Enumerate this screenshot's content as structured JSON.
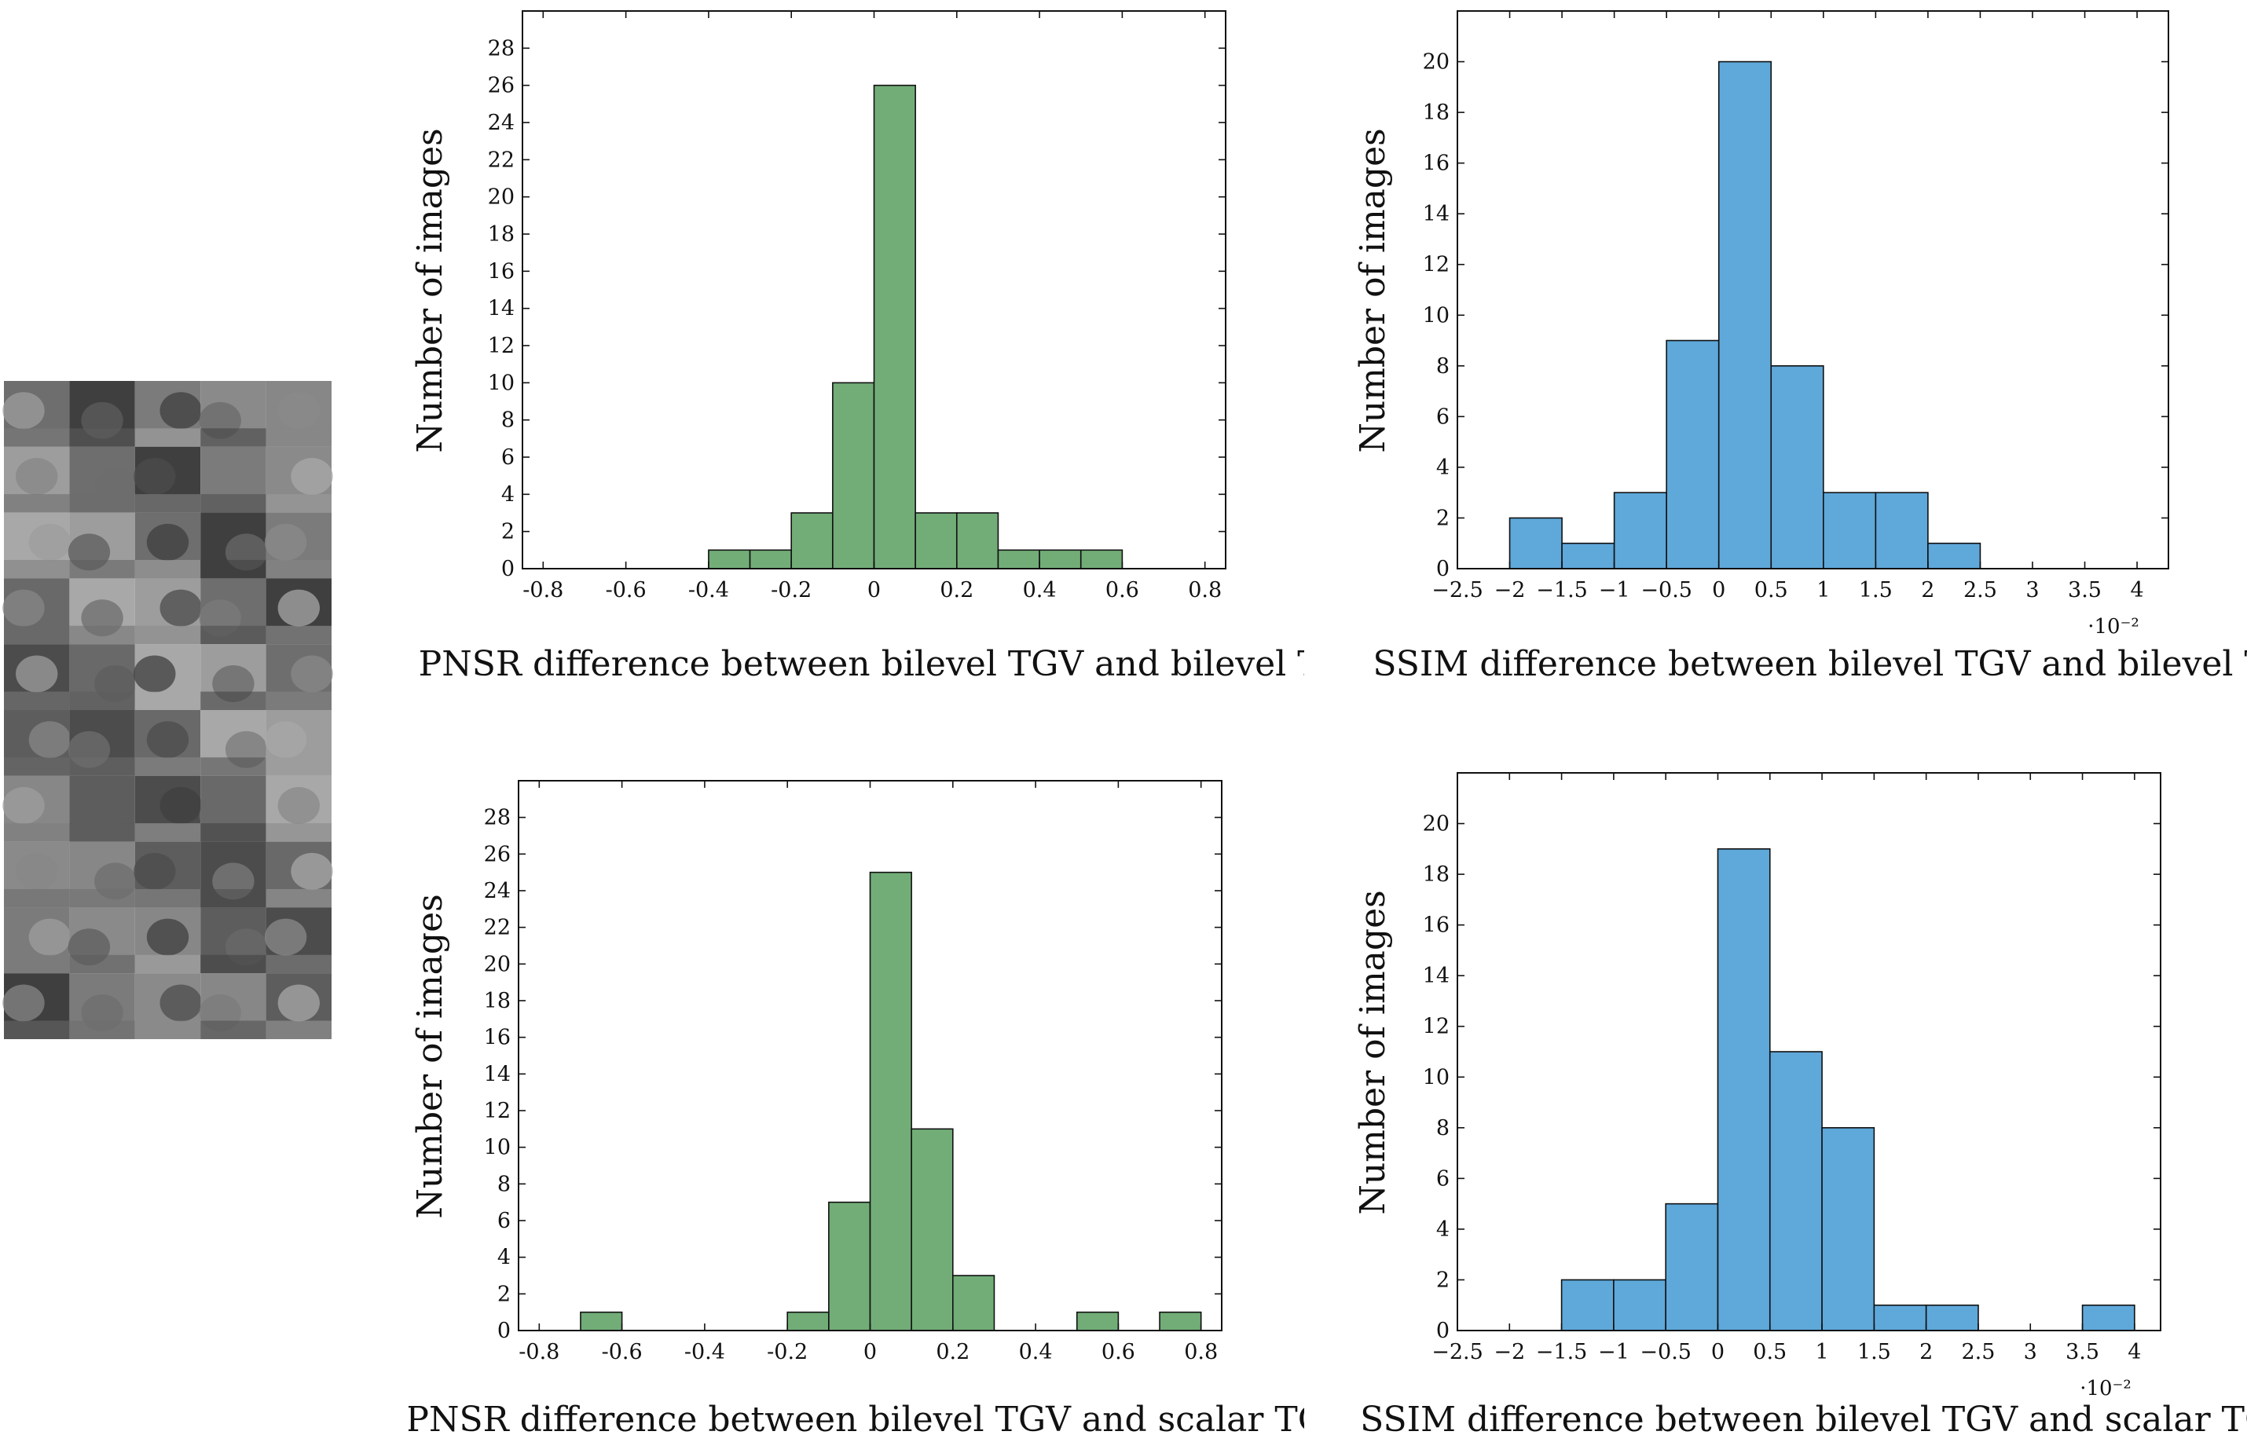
{
  "thumbnail_grid": {
    "rows": 10,
    "cols": 5,
    "icon": "image-thumbnail-grid-icon"
  },
  "chart_data": [
    {
      "type": "bar",
      "id": "pnsr_tv",
      "title": "PNSR difference between bilevel TGV and bilevel TV",
      "ylabel": "Number of images",
      "xlabel": "",
      "xlim": [
        -0.85,
        0.85
      ],
      "ylim": [
        0,
        30
      ],
      "xticks": [
        -0.8,
        -0.6,
        -0.4,
        -0.2,
        0,
        0.2,
        0.4,
        0.6,
        0.8
      ],
      "xtick_labels": [
        "-0.8",
        "-0.6",
        "-0.4",
        "-0.2",
        "0",
        "0.2",
        "0.4",
        "0.6",
        "0.8"
      ],
      "yticks": [
        0,
        2,
        4,
        6,
        8,
        10,
        12,
        14,
        16,
        18,
        20,
        22,
        24,
        26,
        28
      ],
      "ytick_labels": [
        "0",
        "2",
        "4",
        "6",
        "8",
        "10",
        "12",
        "14",
        "16",
        "18",
        "20",
        "22",
        "24",
        "26",
        "28"
      ],
      "bin_edges": [
        -0.4,
        -0.3,
        -0.2,
        -0.1,
        0,
        0.1,
        0.2,
        0.3,
        0.4,
        0.5,
        0.6
      ],
      "values": [
        1,
        1,
        3,
        10,
        26,
        3,
        3,
        1,
        1,
        1
      ],
      "bar_color": "#72ad78",
      "grid": false,
      "sci_label": ""
    },
    {
      "type": "bar",
      "id": "ssim_tv",
      "title": "SSIM difference between bilevel TGV and bilevel TV",
      "ylabel": "Number of images",
      "xlabel": "",
      "xlim": [
        -2.5,
        4.3
      ],
      "ylim": [
        0,
        22
      ],
      "xticks": [
        -2.5,
        -2,
        -1.5,
        -1,
        -0.5,
        0,
        0.5,
        1,
        1.5,
        2,
        2.5,
        3,
        3.5,
        4
      ],
      "xtick_labels": [
        "−2.5",
        "−2",
        "−1.5",
        "−1",
        "−0.5",
        "0",
        "0.5",
        "1",
        "1.5",
        "2",
        "2.5",
        "3",
        "3.5",
        "4"
      ],
      "yticks": [
        0,
        2,
        4,
        6,
        8,
        10,
        12,
        14,
        16,
        18,
        20
      ],
      "ytick_labels": [
        "0",
        "2",
        "4",
        "6",
        "8",
        "10",
        "12",
        "14",
        "16",
        "18",
        "20"
      ],
      "bin_edges": [
        -2,
        -1.5,
        -1,
        -0.5,
        0,
        0.5,
        1,
        1.5,
        2,
        2.5
      ],
      "values": [
        2,
        1,
        3,
        9,
        20,
        8,
        3,
        3,
        1
      ],
      "bar_color": "#5fa8da",
      "grid": false,
      "sci_label": "·10⁻²"
    },
    {
      "type": "bar",
      "id": "pnsr_scalar",
      "title": "PNSR difference between bilevel TGV and scalar TGV",
      "ylabel": "Number of images",
      "xlabel": "",
      "xlim": [
        -0.85,
        0.85
      ],
      "ylim": [
        0,
        30
      ],
      "xticks": [
        -0.8,
        -0.6,
        -0.4,
        -0.2,
        0,
        0.2,
        0.4,
        0.6,
        0.8
      ],
      "xtick_labels": [
        "-0.8",
        "-0.6",
        "-0.4",
        "-0.2",
        "0",
        "0.2",
        "0.4",
        "0.6",
        "0.8"
      ],
      "yticks": [
        0,
        2,
        4,
        6,
        8,
        10,
        12,
        14,
        16,
        18,
        20,
        22,
        24,
        26,
        28
      ],
      "ytick_labels": [
        "0",
        "2",
        "4",
        "6",
        "8",
        "10",
        "12",
        "14",
        "16",
        "18",
        "20",
        "22",
        "24",
        "26",
        "28"
      ],
      "bin_edges": [
        -0.7,
        -0.6,
        -0.5,
        -0.4,
        -0.3,
        -0.2,
        -0.1,
        0,
        0.1,
        0.2,
        0.3,
        0.4,
        0.5,
        0.6,
        0.7,
        0.8
      ],
      "values": [
        1,
        0,
        0,
        0,
        0,
        1,
        7,
        25,
        11,
        3,
        0,
        0,
        1,
        0,
        1
      ],
      "bar_color": "#72ad78",
      "grid": false,
      "sci_label": ""
    },
    {
      "type": "bar",
      "id": "ssim_scalar",
      "title": "SSIM difference between bilevel TGV and scalar TGV",
      "ylabel": "Number of images",
      "xlabel": "",
      "xlim": [
        -2.5,
        4.25
      ],
      "ylim": [
        0,
        22
      ],
      "xticks": [
        -2.5,
        -2,
        -1.5,
        -1,
        -0.5,
        0,
        0.5,
        1,
        1.5,
        2,
        2.5,
        3,
        3.5,
        4
      ],
      "xtick_labels": [
        "−2.5",
        "−2",
        "−1.5",
        "−1",
        "−0.5",
        "0",
        "0.5",
        "1",
        "1.5",
        "2",
        "2.5",
        "3",
        "3.5",
        "4"
      ],
      "yticks": [
        0,
        2,
        4,
        6,
        8,
        10,
        12,
        14,
        16,
        18,
        20
      ],
      "ytick_labels": [
        "0",
        "2",
        "4",
        "6",
        "8",
        "10",
        "12",
        "14",
        "16",
        "18",
        "20"
      ],
      "bin_edges": [
        -1.5,
        -1,
        -0.5,
        0,
        0.5,
        1,
        1.5,
        2,
        2.5,
        3,
        3.5,
        4
      ],
      "values": [
        2,
        2,
        5,
        19,
        11,
        8,
        1,
        1,
        0,
        0,
        1
      ],
      "bar_color": "#5fa8da",
      "grid": false,
      "sci_label": "·10⁻²"
    }
  ]
}
